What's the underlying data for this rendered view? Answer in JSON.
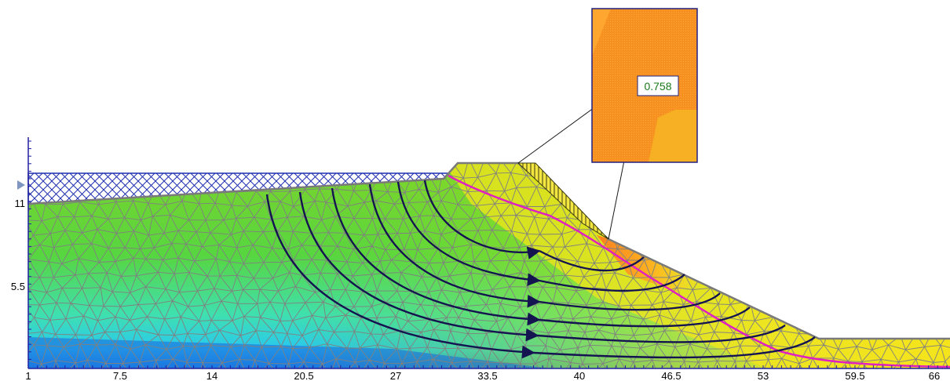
{
  "x_axis": {
    "ticks": [
      "1",
      "7.5",
      "14",
      "20.5",
      "27",
      "33.5",
      "40",
      "46.5",
      "53",
      "59.5",
      "66"
    ]
  },
  "y_axis": {
    "ticks": [
      "11",
      "5.5"
    ]
  },
  "callout": {
    "value": "0.758"
  },
  "colors": {
    "axis": "#2020a0",
    "mesh_line": "#808080",
    "flow_line": "#141450",
    "phreatic_line": "#e020c0",
    "callout_border": "#202080",
    "callout_text": "#1a7a1a",
    "water": "#1f2fb0",
    "water_marker": "#7f96c0"
  },
  "icons": {
    "water_level_marker": "triangle-right"
  }
}
